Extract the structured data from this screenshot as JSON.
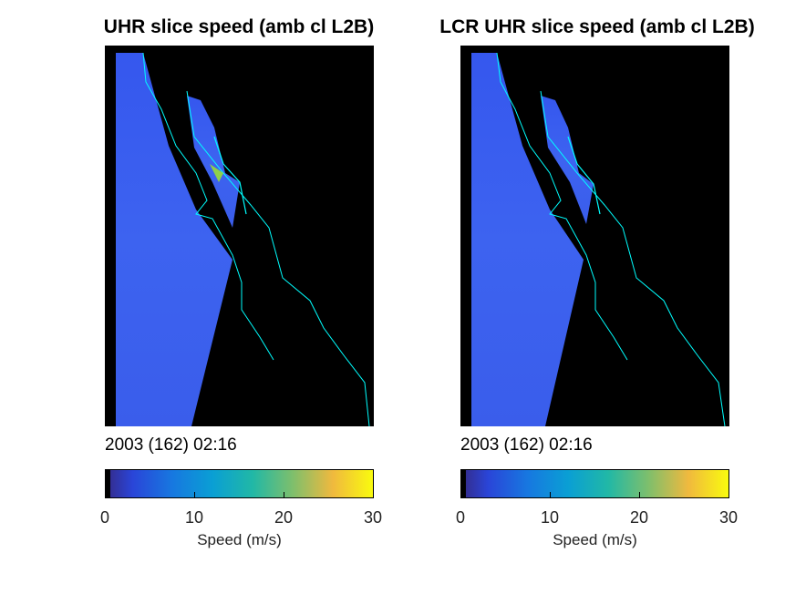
{
  "panels": [
    {
      "title": "UHR slice speed (amb cl L2B)",
      "timestamp": "2003 (162) 02:16",
      "colorbar": {
        "ticks": [
          "0",
          "10",
          "20",
          "30"
        ],
        "label": "Speed (m/s)"
      }
    },
    {
      "title": "LCR UHR slice speed (amb cl L2B)",
      "timestamp": "2003 (162) 02:16",
      "colorbar": {
        "ticks": [
          "0",
          "10",
          "20",
          "30"
        ],
        "label": "Speed (m/s)"
      }
    }
  ],
  "chart_data": [
    {
      "type": "heatmap",
      "title": "UHR slice speed (amb cl L2B)",
      "subtitle": "2003 (162) 02:16",
      "colorbar_label": "Speed (m/s)",
      "colorbar_range": [
        0,
        30
      ],
      "colorbar_ticks": [
        0,
        10,
        20,
        30
      ],
      "colormap": "parula",
      "dominant_speed_range": [
        3,
        8
      ],
      "land_color": "#000000",
      "coastline_color": "#00ffff"
    },
    {
      "type": "heatmap",
      "title": "LCR UHR slice speed (amb cl L2B)",
      "subtitle": "2003 (162) 02:16",
      "colorbar_label": "Speed (m/s)",
      "colorbar_range": [
        0,
        30
      ],
      "colorbar_ticks": [
        0,
        10,
        20,
        30
      ],
      "colormap": "parula",
      "dominant_speed_range": [
        3,
        8
      ],
      "land_color": "#000000",
      "coastline_color": "#00ffff"
    }
  ]
}
